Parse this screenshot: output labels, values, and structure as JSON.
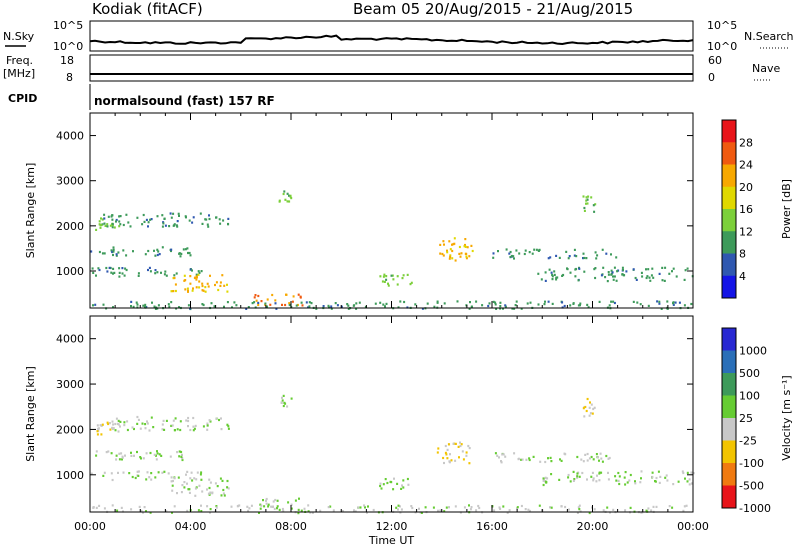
{
  "header": {
    "station": "Kodiak (fitACF)",
    "beam_info": "Beam 05  20/Aug/2015 - 21/Aug/2015"
  },
  "summary_panels": {
    "nsky_label": "N.Sky",
    "nsky_ticks": [
      "10^5",
      "10^0"
    ],
    "nsearch_label": "N.Search",
    "nsearch_ticks": [
      "10^5",
      "10^0"
    ],
    "freq_label": "Freq.",
    "freq_unit": "[MHz]",
    "freq_ticks": [
      "18",
      "8"
    ],
    "nave_label": "Nave",
    "nave_ticks": [
      "60",
      "0"
    ],
    "cpid_label": "CPID",
    "cpid_value": "normalsound (fast) 157 RF"
  },
  "chart_data": [
    {
      "type": "heatmap",
      "panel": "power",
      "ylabel": "Slant Range [km]",
      "xlabel": "",
      "ylim": [
        180,
        4500
      ],
      "xlim": [
        "00:00",
        "24:00"
      ],
      "yticks": [
        "1000",
        "2000",
        "3000",
        "4000"
      ],
      "colorbar": {
        "label": "Power [dB]",
        "tick_labels": [
          "28",
          "24",
          "20",
          "16",
          "12",
          "8",
          "4"
        ],
        "colors": [
          "#e8141a",
          "#f05a10",
          "#f7a800",
          "#e0d800",
          "#7ccf3a",
          "#3d9a5a",
          "#2f58b0",
          "#1414e6"
        ],
        "range": [
          0,
          30
        ]
      },
      "echo_regions": [
        {
          "time_start": 0.1,
          "time_end": 1.2,
          "range_start": 1900,
          "range_end": 2200,
          "level": 12
        },
        {
          "time_start": 0.5,
          "time_end": 5.5,
          "range_start": 2000,
          "range_end": 2300,
          "level": 8
        },
        {
          "time_start": 0,
          "time_end": 4.0,
          "range_start": 1350,
          "range_end": 1550,
          "level": 8
        },
        {
          "time_start": 0,
          "time_end": 4.5,
          "range_start": 900,
          "range_end": 1100,
          "level": 8
        },
        {
          "time_start": 3.2,
          "time_end": 5.5,
          "range_start": 550,
          "range_end": 950,
          "level": 20
        },
        {
          "time_start": 6.5,
          "time_end": 8.5,
          "range_start": 250,
          "range_end": 500,
          "level": 24
        },
        {
          "time_start": 11.5,
          "time_end": 12.8,
          "range_start": 700,
          "range_end": 950,
          "level": 12
        },
        {
          "time_start": 13.8,
          "time_end": 15.2,
          "range_start": 1250,
          "range_end": 1750,
          "level": 20
        },
        {
          "time_start": 16.0,
          "time_end": 21.0,
          "range_start": 1300,
          "range_end": 1500,
          "level": 8
        },
        {
          "time_start": 17.8,
          "time_end": 24.0,
          "range_start": 800,
          "range_end": 1100,
          "level": 8
        },
        {
          "time_start": 19.6,
          "time_end": 20.1,
          "range_start": 2300,
          "range_end": 2700,
          "level": 12
        },
        {
          "time_start": 7.5,
          "time_end": 8.0,
          "range_start": 2500,
          "range_end": 2800,
          "level": 12
        },
        {
          "time_start": 0,
          "time_end": 24.0,
          "range_start": 180,
          "range_end": 350,
          "level": 8
        }
      ]
    },
    {
      "type": "heatmap",
      "panel": "velocity",
      "ylabel": "Slant Range [km]",
      "xlabel": "Time UT",
      "ylim": [
        180,
        4500
      ],
      "xlim": [
        "00:00",
        "24:00"
      ],
      "yticks": [
        "1000",
        "2000",
        "3000",
        "4000"
      ],
      "xticks": [
        "00:00",
        "04:00",
        "08:00",
        "12:00",
        "16:00",
        "20:00",
        "00:00"
      ],
      "colorbar": {
        "label": "Velocity [m s⁻¹]",
        "tick_labels": [
          "1000",
          "500",
          "100",
          "25",
          "-25",
          "-100",
          "-500",
          "-1000"
        ],
        "colors": [
          "#2828d2",
          "#2a6fb8",
          "#3d9a5a",
          "#66cc33",
          "#c8c8c8",
          "#f2c400",
          "#f07a10",
          "#e8141a"
        ],
        "range": [
          -1000,
          1000
        ]
      },
      "echo_regions": [
        {
          "time_start": 0.1,
          "time_end": 1.2,
          "range_start": 1900,
          "range_end": 2200,
          "level": -200
        },
        {
          "time_start": 0.5,
          "time_end": 5.5,
          "range_start": 2000,
          "range_end": 2300,
          "level": 0
        },
        {
          "time_start": 0,
          "time_end": 4.0,
          "range_start": 1350,
          "range_end": 1550,
          "level": 0
        },
        {
          "time_start": 0,
          "time_end": 4.5,
          "range_start": 900,
          "range_end": 1100,
          "level": 0
        },
        {
          "time_start": 3.2,
          "time_end": 5.5,
          "range_start": 550,
          "range_end": 950,
          "level": -60
        },
        {
          "time_start": 6.5,
          "time_end": 8.5,
          "range_start": 250,
          "range_end": 500,
          "level": 60
        },
        {
          "time_start": 11.5,
          "time_end": 12.8,
          "range_start": 700,
          "range_end": 950,
          "level": 60
        },
        {
          "time_start": 13.8,
          "time_end": 15.2,
          "range_start": 1250,
          "range_end": 1750,
          "level": -300
        },
        {
          "time_start": 16.0,
          "time_end": 21.0,
          "range_start": 1300,
          "range_end": 1500,
          "level": 0
        },
        {
          "time_start": 17.8,
          "time_end": 24.0,
          "range_start": 800,
          "range_end": 1100,
          "level": 0
        },
        {
          "time_start": 19.6,
          "time_end": 20.1,
          "range_start": 2300,
          "range_end": 2700,
          "level": -300
        },
        {
          "time_start": 7.5,
          "time_end": 8.0,
          "range_start": 2500,
          "range_end": 2800,
          "level": 0
        },
        {
          "time_start": 0,
          "time_end": 24.0,
          "range_start": 180,
          "range_end": 350,
          "level": -60
        }
      ]
    }
  ]
}
